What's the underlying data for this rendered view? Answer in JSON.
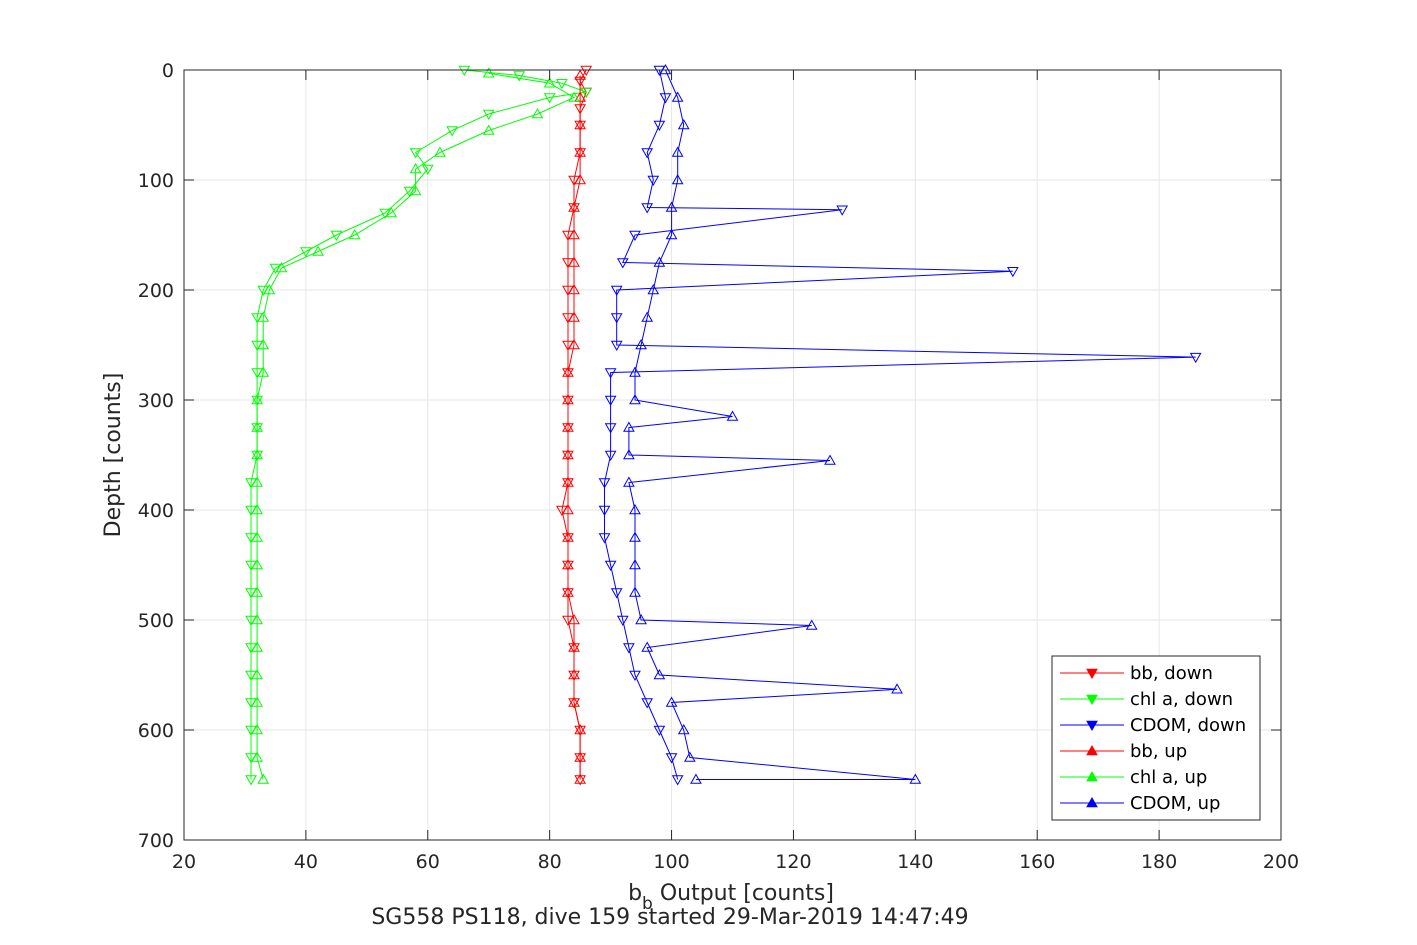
{
  "chart_data": {
    "type": "line",
    "title": "SG558 PS118, dive 159 started 29-Mar-2019 14:47:49",
    "xlabel_main": "b",
    "xlabel_sub": "b",
    "xlabel_rest": " Output [counts]",
    "ylabel": "Depth [counts]",
    "xlim": [
      20,
      200
    ],
    "ylim": [
      0,
      700
    ],
    "y_reversed": true,
    "grid": true,
    "legend_position": "bottom-right",
    "xticks": [
      20,
      40,
      60,
      80,
      100,
      120,
      140,
      160,
      180,
      200
    ],
    "yticks": [
      0,
      100,
      200,
      300,
      400,
      500,
      600,
      700
    ],
    "series": [
      {
        "name": "bb, down",
        "color": "#ff0000",
        "marker": "triangle-down",
        "points": [
          [
            86,
            0
          ],
          [
            85,
            10
          ],
          [
            86,
            20
          ],
          [
            85,
            35
          ],
          [
            85,
            50
          ],
          [
            85,
            75
          ],
          [
            84,
            100
          ],
          [
            84,
            125
          ],
          [
            83,
            150
          ],
          [
            83,
            175
          ],
          [
            83,
            200
          ],
          [
            83,
            225
          ],
          [
            83,
            250
          ],
          [
            83,
            275
          ],
          [
            83,
            300
          ],
          [
            83,
            325
          ],
          [
            83,
            350
          ],
          [
            83,
            375
          ],
          [
            82,
            400
          ],
          [
            83,
            425
          ],
          [
            83,
            450
          ],
          [
            83,
            475
          ],
          [
            83,
            500
          ],
          [
            84,
            525
          ],
          [
            84,
            550
          ],
          [
            84,
            575
          ],
          [
            85,
            600
          ],
          [
            85,
            625
          ],
          [
            85,
            645
          ]
        ]
      },
      {
        "name": "chl a, down",
        "color": "#00ff00",
        "marker": "triangle-down",
        "points": [
          [
            66,
            0
          ],
          [
            75,
            5
          ],
          [
            82,
            12
          ],
          [
            86,
            20
          ],
          [
            80,
            25
          ],
          [
            70,
            40
          ],
          [
            64,
            55
          ],
          [
            58,
            75
          ],
          [
            60,
            90
          ],
          [
            57,
            110
          ],
          [
            53,
            130
          ],
          [
            45,
            150
          ],
          [
            40,
            165
          ],
          [
            35,
            180
          ],
          [
            33,
            200
          ],
          [
            32,
            225
          ],
          [
            32,
            250
          ],
          [
            32,
            275
          ],
          [
            32,
            300
          ],
          [
            32,
            325
          ],
          [
            32,
            350
          ],
          [
            31,
            375
          ],
          [
            31,
            400
          ],
          [
            31,
            425
          ],
          [
            31,
            450
          ],
          [
            31,
            475
          ],
          [
            31,
            500
          ],
          [
            31,
            525
          ],
          [
            31,
            550
          ],
          [
            31,
            575
          ],
          [
            31,
            600
          ],
          [
            31,
            625
          ],
          [
            31,
            645
          ]
        ]
      },
      {
        "name": "CDOM, down",
        "color": "#0000ff",
        "marker": "triangle-down",
        "points": [
          [
            98,
            0
          ],
          [
            99,
            25
          ],
          [
            98,
            50
          ],
          [
            96,
            75
          ],
          [
            97,
            100
          ],
          [
            96,
            125
          ],
          [
            128,
            127
          ],
          [
            94,
            150
          ],
          [
            92,
            175
          ],
          [
            156,
            183
          ],
          [
            91,
            200
          ],
          [
            91,
            225
          ],
          [
            91,
            250
          ],
          [
            186,
            261
          ],
          [
            90,
            275
          ],
          [
            90,
            300
          ],
          [
            90,
            325
          ],
          [
            90,
            350
          ],
          [
            89,
            375
          ],
          [
            89,
            400
          ],
          [
            89,
            425
          ],
          [
            90,
            450
          ],
          [
            91,
            475
          ],
          [
            92,
            500
          ],
          [
            93,
            525
          ],
          [
            94,
            550
          ],
          [
            96,
            575
          ],
          [
            98,
            600
          ],
          [
            100,
            625
          ],
          [
            101,
            645
          ]
        ]
      },
      {
        "name": "bb, up",
        "color": "#ff0000",
        "marker": "triangle-up",
        "points": [
          [
            85,
            645
          ],
          [
            85,
            625
          ],
          [
            85,
            600
          ],
          [
            84,
            575
          ],
          [
            84,
            550
          ],
          [
            84,
            525
          ],
          [
            84,
            500
          ],
          [
            83,
            475
          ],
          [
            83,
            450
          ],
          [
            83,
            425
          ],
          [
            83,
            400
          ],
          [
            83,
            375
          ],
          [
            83,
            350
          ],
          [
            83,
            325
          ],
          [
            83,
            300
          ],
          [
            83,
            275
          ],
          [
            84,
            250
          ],
          [
            84,
            225
          ],
          [
            84,
            200
          ],
          [
            84,
            175
          ],
          [
            84,
            150
          ],
          [
            84,
            125
          ],
          [
            85,
            100
          ],
          [
            85,
            75
          ],
          [
            85,
            50
          ],
          [
            85,
            25
          ],
          [
            85,
            5
          ]
        ]
      },
      {
        "name": "chl a, up",
        "color": "#00ff00",
        "marker": "triangle-up",
        "points": [
          [
            33,
            645
          ],
          [
            32,
            625
          ],
          [
            32,
            600
          ],
          [
            32,
            575
          ],
          [
            32,
            550
          ],
          [
            32,
            525
          ],
          [
            32,
            500
          ],
          [
            32,
            475
          ],
          [
            32,
            450
          ],
          [
            32,
            425
          ],
          [
            32,
            400
          ],
          [
            32,
            375
          ],
          [
            32,
            350
          ],
          [
            32,
            325
          ],
          [
            32,
            300
          ],
          [
            33,
            275
          ],
          [
            33,
            250
          ],
          [
            33,
            225
          ],
          [
            34,
            200
          ],
          [
            36,
            180
          ],
          [
            42,
            165
          ],
          [
            48,
            150
          ],
          [
            54,
            130
          ],
          [
            58,
            110
          ],
          [
            58,
            90
          ],
          [
            62,
            75
          ],
          [
            70,
            55
          ],
          [
            78,
            40
          ],
          [
            84,
            25
          ],
          [
            80,
            12
          ],
          [
            70,
            3
          ]
        ]
      },
      {
        "name": "CDOM, up",
        "color": "#0000ff",
        "marker": "triangle-up",
        "points": [
          [
            104,
            645
          ],
          [
            140,
            645
          ],
          [
            103,
            625
          ],
          [
            102,
            600
          ],
          [
            100,
            575
          ],
          [
            137,
            563
          ],
          [
            98,
            550
          ],
          [
            96,
            525
          ],
          [
            123,
            505
          ],
          [
            95,
            500
          ],
          [
            94,
            475
          ],
          [
            94,
            450
          ],
          [
            94,
            425
          ],
          [
            94,
            400
          ],
          [
            93,
            375
          ],
          [
            126,
            355
          ],
          [
            93,
            350
          ],
          [
            93,
            325
          ],
          [
            110,
            315
          ],
          [
            94,
            300
          ],
          [
            94,
            275
          ],
          [
            95,
            250
          ],
          [
            96,
            225
          ],
          [
            97,
            200
          ],
          [
            98,
            175
          ],
          [
            100,
            150
          ],
          [
            100,
            125
          ],
          [
            101,
            100
          ],
          [
            101,
            75
          ],
          [
            102,
            50
          ],
          [
            101,
            25
          ],
          [
            99,
            0
          ]
        ]
      }
    ]
  }
}
